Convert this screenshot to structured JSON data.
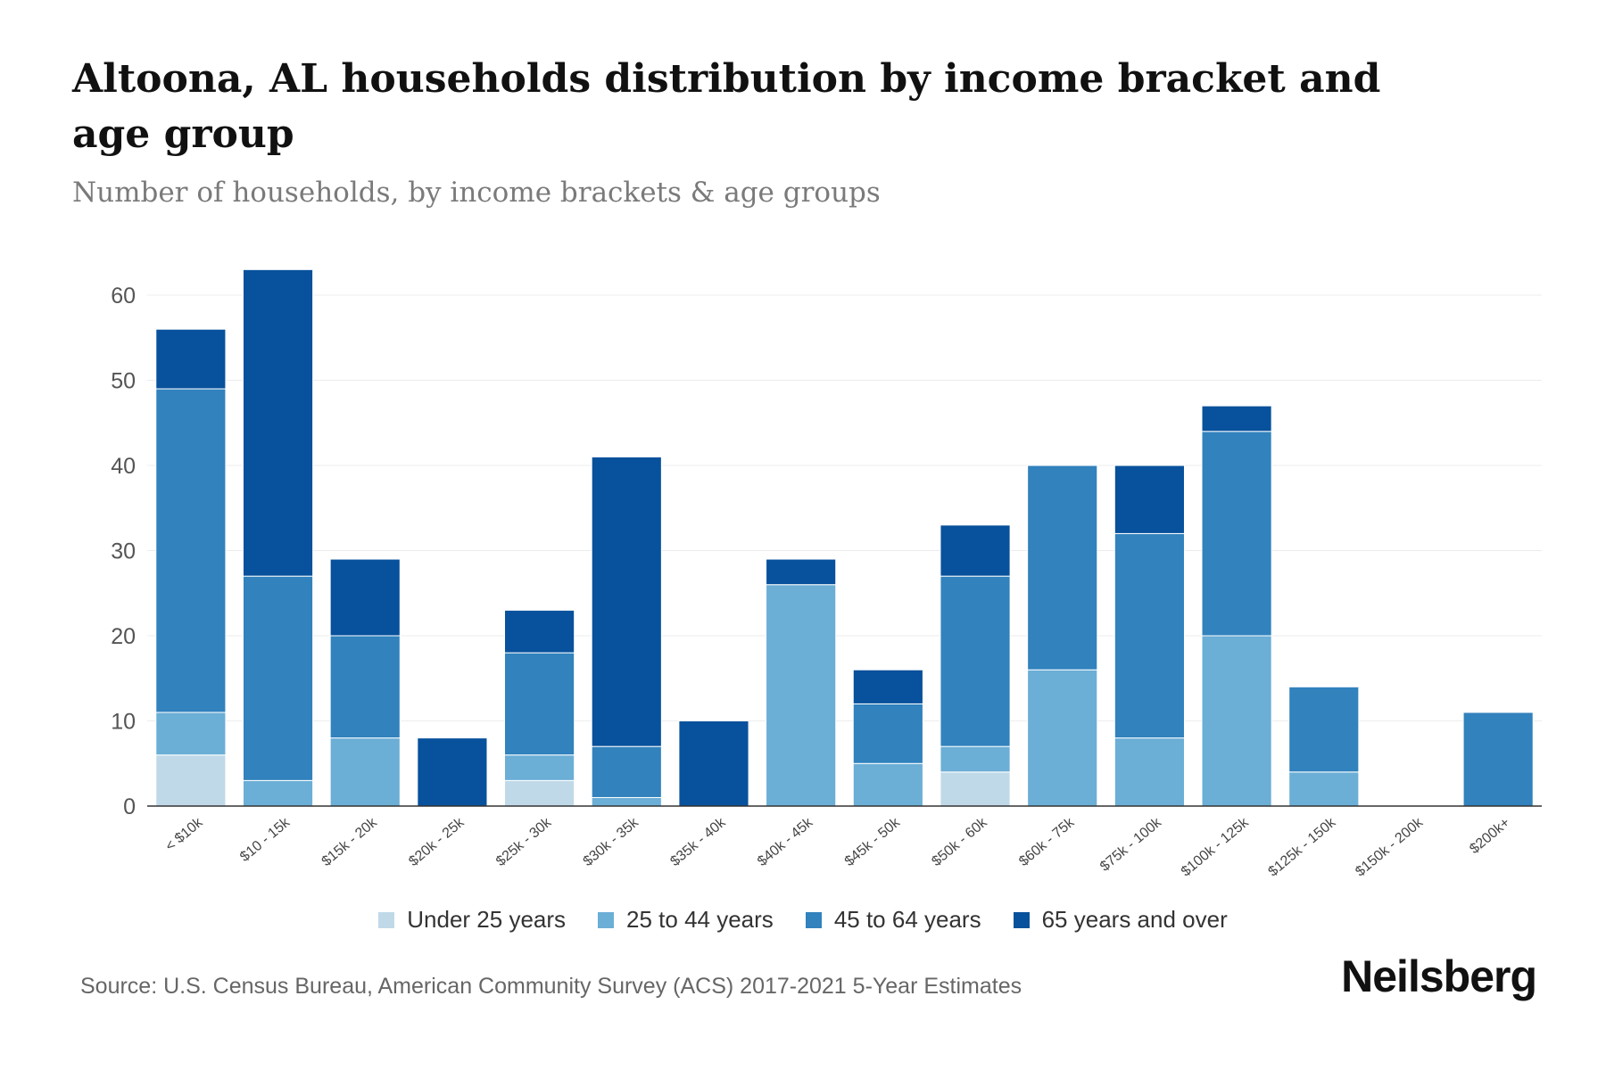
{
  "chart_data": {
    "type": "bar",
    "stacked": true,
    "title": "Altoona, AL households distribution by income bracket and age group",
    "subtitle": "Number of households, by income brackets & age groups",
    "xlabel": "",
    "ylabel": "",
    "ylim": [
      0,
      60
    ],
    "yticks": [
      0,
      10,
      20,
      30,
      40,
      50,
      60
    ],
    "grid": true,
    "legend_position": "bottom",
    "categories": [
      "< $10k",
      "$10 - 15k",
      "$15k - 20k",
      "$20k - 25k",
      "$25k - 30k",
      "$30k - 35k",
      "$35k - 40k",
      "$40k - 45k",
      "$45k - 50k",
      "$50k - 60k",
      "$60k - 75k",
      "$75k - 100k",
      "$100k - 125k",
      "$125k - 150k",
      "$150k - 200k",
      "$200k+"
    ],
    "series": [
      {
        "name": "Under 25 years",
        "color": "#c0d9e8",
        "values": [
          6,
          0,
          0,
          0,
          3,
          0,
          0,
          0,
          0,
          4,
          0,
          0,
          0,
          0,
          0,
          0
        ]
      },
      {
        "name": "25 to 44 years",
        "color": "#6baed6",
        "values": [
          5,
          3,
          8,
          0,
          3,
          1,
          0,
          26,
          5,
          3,
          16,
          8,
          20,
          4,
          0,
          0
        ]
      },
      {
        "name": "45 to 64 years",
        "color": "#3182bd",
        "values": [
          38,
          24,
          12,
          0,
          12,
          6,
          0,
          0,
          7,
          20,
          24,
          24,
          24,
          10,
          0,
          11
        ]
      },
      {
        "name": "65 years and over",
        "color": "#08519c",
        "values": [
          7,
          36,
          9,
          8,
          5,
          34,
          10,
          3,
          4,
          6,
          0,
          8,
          3,
          0,
          0,
          0
        ]
      }
    ]
  },
  "footer": {
    "source": "Source: U.S. Census Bureau, American Community Survey (ACS) 2017-2021 5-Year Estimates",
    "brand": "Neilsberg"
  }
}
